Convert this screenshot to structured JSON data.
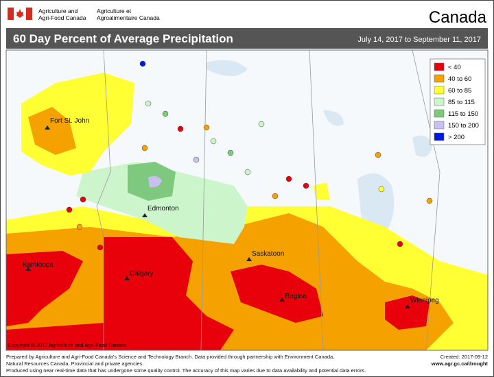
{
  "header": {
    "agency_en": [
      "Agriculture and",
      "Agri-Food Canada"
    ],
    "agency_fr": [
      "Agriculture et",
      "Agroalimentaire Canada"
    ],
    "wordmark": "Canada"
  },
  "title": "60 Day Percent of Average Precipitation",
  "date_range": "July 14, 2017 to September 11, 2017",
  "legend": {
    "items": [
      {
        "label": "< 40",
        "color": "#e8000b"
      },
      {
        "label": "40 to 60",
        "color": "#f5a100"
      },
      {
        "label": "60 to 85",
        "color": "#ffff33"
      },
      {
        "label": "85 to 115",
        "color": "#ccf5cc"
      },
      {
        "label": "115 to 150",
        "color": "#7fc97f"
      },
      {
        "label": "150 to 200",
        "color": "#c8c0f0"
      },
      {
        "label": "> 200",
        "color": "#0018e0"
      }
    ]
  },
  "cities": [
    "Fort St. John",
    "Edmonton",
    "Kamloops",
    "Calgary",
    "Saskatoon",
    "Regina",
    "Winnipeg"
  ],
  "copyright": "Copyright © 2017 Agriculture and Agri-Food Canada",
  "footer": {
    "lines": [
      "Prepared by Agriculture and Agri-Food Canada's Science and Technology Branch. Data provided through partnership with Environment Canada,",
      "Natural Resources Canada, Provincial and private agencies.",
      "Produced using near real-time data that has undergone some quality control. The accuracy of this map varies due to data availability and potential data errors."
    ],
    "created": "Created: 2017-09-12",
    "url": "www.agr.gc.ca/drought"
  }
}
